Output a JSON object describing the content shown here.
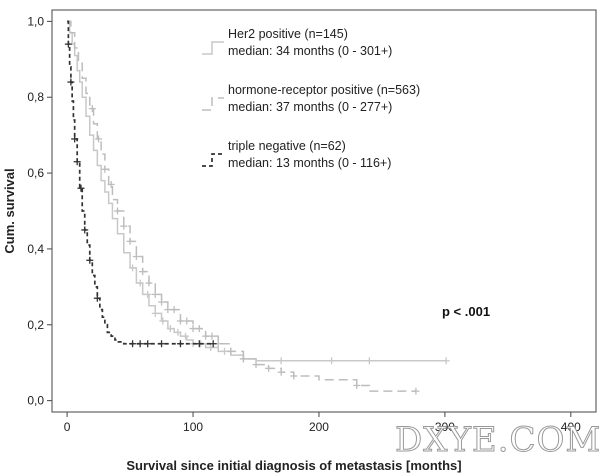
{
  "chart_data": {
    "type": "line",
    "subtype": "kaplan-meier",
    "title": "",
    "xlabel": "Survival since initial diagnosis of metastasis [months]",
    "ylabel": "Cum. survival",
    "xlim": [
      -12,
      420
    ],
    "ylim": [
      -0.03,
      1.03
    ],
    "x_ticks": [
      0,
      100,
      200,
      300,
      400
    ],
    "x_tick_labels": [
      "0",
      "100",
      "200",
      "300",
      "400"
    ],
    "y_ticks": [
      0.0,
      0.2,
      0.4,
      0.6,
      0.8,
      1.0
    ],
    "y_tick_labels": [
      "0,0",
      "0,2",
      "0,4",
      "0,6",
      "0,8",
      "1,0"
    ],
    "grid": false,
    "legend_position": "top-center",
    "annotation": "p < .001",
    "watermark": "DXYE.COM",
    "series": [
      {
        "name": "Her2 positive (n=145)",
        "median_label": "median: 34 months (0 - 301+)",
        "color": "#c8c8c8",
        "dash": "solid",
        "x": [
          0,
          2,
          4,
          6,
          8,
          10,
          12,
          15,
          18,
          21,
          24,
          27,
          30,
          33,
          36,
          40,
          45,
          50,
          55,
          60,
          65,
          70,
          75,
          80,
          85,
          90,
          95,
          100,
          110,
          120,
          130,
          140,
          150,
          301
        ],
        "y": [
          1.0,
          0.97,
          0.94,
          0.91,
          0.87,
          0.84,
          0.8,
          0.75,
          0.7,
          0.66,
          0.62,
          0.58,
          0.55,
          0.52,
          0.48,
          0.44,
          0.39,
          0.35,
          0.31,
          0.28,
          0.25,
          0.23,
          0.21,
          0.19,
          0.18,
          0.17,
          0.16,
          0.15,
          0.14,
          0.13,
          0.12,
          0.11,
          0.105,
          0.105
        ],
        "censor_x": [
          52,
          58,
          64,
          70,
          76,
          82,
          88,
          94,
          100,
          106,
          114,
          125,
          140,
          170,
          210,
          240,
          301
        ]
      },
      {
        "name": "hormone-receptor positive (n=563)",
        "median_label": "median: 37 months (0 - 277+)",
        "color": "#bdbdbd",
        "dash": "long-dash",
        "x": [
          0,
          3,
          6,
          9,
          12,
          15,
          18,
          21,
          24,
          27,
          30,
          33,
          36,
          40,
          45,
          50,
          55,
          60,
          65,
          70,
          75,
          80,
          90,
          100,
          110,
          120,
          130,
          140,
          150,
          160,
          170,
          180,
          200,
          230,
          240,
          277
        ],
        "y": [
          1.0,
          0.97,
          0.93,
          0.89,
          0.85,
          0.81,
          0.77,
          0.73,
          0.69,
          0.65,
          0.61,
          0.57,
          0.53,
          0.5,
          0.46,
          0.42,
          0.38,
          0.34,
          0.31,
          0.28,
          0.26,
          0.24,
          0.21,
          0.19,
          0.17,
          0.15,
          0.13,
          0.11,
          0.095,
          0.085,
          0.075,
          0.065,
          0.055,
          0.04,
          0.025,
          0.025
        ],
        "censor_x": [
          20,
          25,
          30,
          35,
          40,
          45,
          50,
          55,
          60,
          65,
          70,
          75,
          80,
          85,
          90,
          95,
          100,
          105,
          110,
          115,
          120,
          130,
          140,
          150,
          160,
          170,
          180,
          230,
          277
        ]
      },
      {
        "name": "triple negative (n=62)",
        "median_label": "median: 13 months (0 - 116+)",
        "color": "#333333",
        "dash": "short-dash",
        "x": [
          0,
          1,
          2,
          3,
          4,
          5,
          6,
          8,
          10,
          12,
          14,
          16,
          18,
          20,
          22,
          24,
          26,
          28,
          30,
          32,
          35,
          38,
          40,
          45,
          116
        ],
        "y": [
          1.0,
          0.94,
          0.88,
          0.84,
          0.79,
          0.74,
          0.69,
          0.63,
          0.56,
          0.5,
          0.45,
          0.41,
          0.37,
          0.33,
          0.3,
          0.27,
          0.24,
          0.22,
          0.2,
          0.18,
          0.17,
          0.16,
          0.155,
          0.15,
          0.15
        ],
        "censor_x": [
          1,
          3,
          6,
          8,
          11,
          14,
          18,
          24,
          52,
          58,
          64,
          75,
          90,
          105,
          116
        ]
      }
    ]
  }
}
